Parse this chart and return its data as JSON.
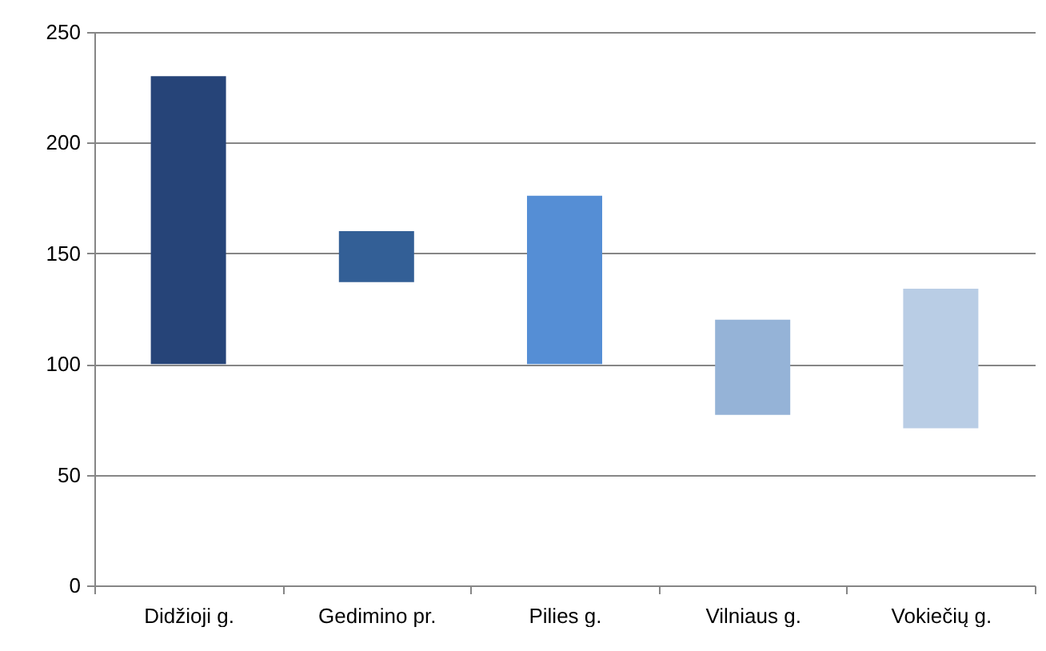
{
  "chart_data": {
    "type": "bar",
    "categories": [
      "Didžioji g.",
      "Gedimino pr.",
      "Pilies g.",
      "Vilniaus g.",
      "Vokiečių g."
    ],
    "values": [
      130,
      23,
      76,
      43,
      63
    ],
    "base": [
      100,
      137,
      100,
      77,
      71
    ],
    "colors": [
      "#264478",
      "#335f96",
      "#558ed5",
      "#95b3d7",
      "#b9cde5"
    ],
    "ylim": [
      0,
      250
    ],
    "yticks": [
      0,
      50,
      100,
      150,
      200,
      250
    ],
    "grid": "y",
    "legend": false
  }
}
